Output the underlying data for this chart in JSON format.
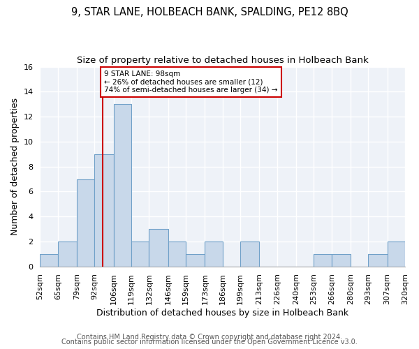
{
  "title1": "9, STAR LANE, HOLBEACH BANK, SPALDING, PE12 8BQ",
  "title2": "Size of property relative to detached houses in Holbeach Bank",
  "xlabel": "Distribution of detached houses by size in Holbeach Bank",
  "ylabel": "Number of detached properties",
  "footer1": "Contains HM Land Registry data © Crown copyright and database right 2024.",
  "footer2": "Contains public sector information licensed under the Open Government Licence v3.0.",
  "bar_color": "#c8d8ea",
  "bar_edge_color": "#6fa0c8",
  "grid_color": "#d0d8e4",
  "vline_color": "#cc0000",
  "vline_x": 98,
  "bin_edges": [
    52,
    65,
    79,
    92,
    106,
    119,
    132,
    146,
    159,
    173,
    186,
    199,
    213,
    226,
    240,
    253,
    266,
    280,
    293,
    307,
    320
  ],
  "bar_heights": [
    1,
    2,
    7,
    9,
    13,
    2,
    3,
    2,
    1,
    2,
    0,
    2,
    0,
    0,
    0,
    1,
    1,
    0,
    1,
    2
  ],
  "annotation_line1": "9 STAR LANE: 98sqm",
  "annotation_line2": "← 26% of detached houses are smaller (12)",
  "annotation_line3": "74% of semi-detached houses are larger (34) →",
  "annotation_box_color": "white",
  "annotation_box_edge": "#cc0000",
  "ylim": [
    0,
    16
  ],
  "yticks": [
    0,
    2,
    4,
    6,
    8,
    10,
    12,
    14,
    16
  ],
  "tick_label_fontsize": 8,
  "title_fontsize1": 10.5,
  "title_fontsize2": 9.5,
  "xlabel_fontsize": 9,
  "ylabel_fontsize": 9,
  "footer_fontsize": 7,
  "axes_bg_color": "#eef2f8"
}
